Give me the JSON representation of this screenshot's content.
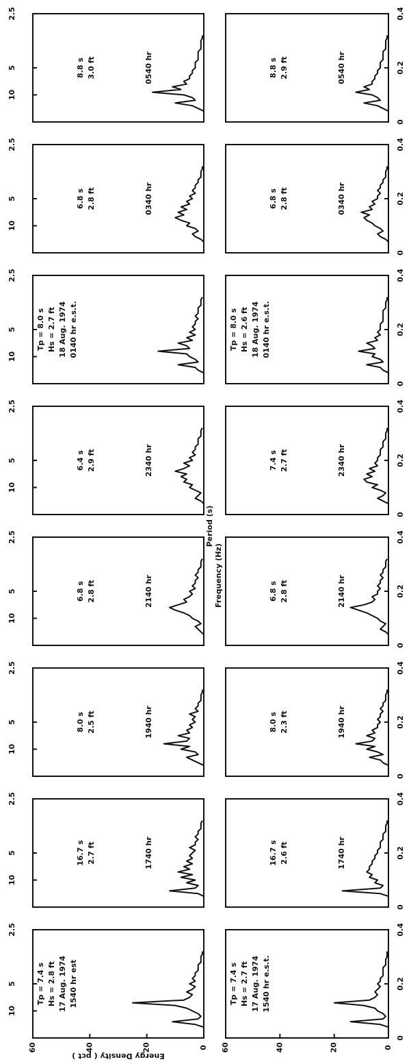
{
  "chart_data": [
    {
      "type": "line",
      "annotation": [
        "Tp = 7.4 s",
        "Hs = 2.8 ft",
        "17 Aug. 1974",
        "1540 hr est"
      ],
      "x": [
        0.04,
        0.05,
        0.06,
        0.07,
        0.08,
        0.09,
        0.1,
        0.11,
        0.12,
        0.13,
        0.14,
        0.15,
        0.16,
        0.17,
        0.18,
        0.19,
        0.2,
        0.21,
        0.22,
        0.23,
        0.24,
        0.25,
        0.26,
        0.27,
        0.28,
        0.29,
        0.3,
        0.31,
        0.32
      ],
      "values": [
        0,
        3,
        11,
        2,
        1,
        2,
        4,
        6,
        10,
        25,
        7,
        5,
        4,
        6,
        4,
        3,
        5,
        3,
        4,
        3,
        3,
        2,
        2,
        2,
        1,
        1,
        1,
        0.5,
        0.5
      ],
      "color": "#111",
      "xlim": [
        0,
        0.4
      ],
      "ylim": [
        0,
        60
      ],
      "x2ticks": [
        {
          "value": 0.1,
          "label": "10"
        },
        {
          "value": 0.2,
          "label": "5"
        },
        {
          "value": 0.4,
          "label": "2.5"
        }
      ],
      "yticks": [
        0,
        20,
        40,
        60
      ],
      "ylabel": "Energy Density ( pct )"
    },
    {
      "type": "line",
      "annotation": [
        "16.7 s",
        "2.7 ft",
        "1740 hr"
      ],
      "x": [
        0.04,
        0.05,
        0.06,
        0.07,
        0.08,
        0.09,
        0.1,
        0.11,
        0.12,
        0.13,
        0.14,
        0.15,
        0.16,
        0.17,
        0.18,
        0.19,
        0.2,
        0.21,
        0.22,
        0.23,
        0.24,
        0.25,
        0.26,
        0.27,
        0.28,
        0.29,
        0.3,
        0.31,
        0.32
      ],
      "values": [
        0,
        2,
        12,
        3,
        2,
        6,
        3,
        8,
        4,
        9,
        5,
        7,
        4,
        6,
        4,
        5,
        4,
        3,
        5,
        3,
        3,
        2,
        3,
        2,
        2,
        1,
        1,
        1,
        0.5
      ],
      "color": "#111",
      "xlim": [
        0,
        0.4
      ],
      "ylim": [
        0,
        60
      ],
      "x2ticks": [
        {
          "value": 0.1,
          "label": "10"
        },
        {
          "value": 0.2,
          "label": "5"
        },
        {
          "value": 0.4,
          "label": "2.5"
        }
      ]
    },
    {
      "type": "line",
      "annotation": [
        "8.0 s",
        "2.5 ft",
        "1940 hr"
      ],
      "x": [
        0.04,
        0.05,
        0.06,
        0.07,
        0.08,
        0.09,
        0.1,
        0.11,
        0.12,
        0.13,
        0.14,
        0.15,
        0.16,
        0.17,
        0.18,
        0.19,
        0.2,
        0.21,
        0.22,
        0.23,
        0.24,
        0.25,
        0.26,
        0.27,
        0.28,
        0.29,
        0.3,
        0.31,
        0.32
      ],
      "values": [
        0,
        2,
        4,
        6,
        2,
        3,
        8,
        5,
        14,
        6,
        5,
        9,
        5,
        6,
        4,
        5,
        3,
        4,
        3,
        5,
        2,
        3,
        2,
        2,
        1,
        1,
        1,
        0.5,
        0.5
      ],
      "color": "#111",
      "xlim": [
        0,
        0.4
      ],
      "ylim": [
        0,
        60
      ],
      "x2ticks": [
        {
          "value": 0.1,
          "label": "10"
        },
        {
          "value": 0.2,
          "label": "5"
        },
        {
          "value": 0.4,
          "label": "2.5"
        }
      ]
    },
    {
      "type": "line",
      "annotation": [
        "6.8 s",
        "2.8 ft",
        "2140 hr"
      ],
      "x": [
        0.04,
        0.05,
        0.06,
        0.07,
        0.08,
        0.09,
        0.1,
        0.11,
        0.12,
        0.13,
        0.14,
        0.15,
        0.16,
        0.17,
        0.18,
        0.19,
        0.2,
        0.21,
        0.22,
        0.23,
        0.24,
        0.25,
        0.26,
        0.27,
        0.28,
        0.29,
        0.3,
        0.31,
        0.32
      ],
      "values": [
        0,
        1,
        2,
        3,
        1,
        2,
        4,
        5,
        7,
        10,
        12,
        9,
        6,
        7,
        5,
        4,
        5,
        3,
        4,
        3,
        3,
        2,
        3,
        2,
        2,
        1,
        1,
        1,
        0.5
      ],
      "color": "#111",
      "xlim": [
        0,
        0.4
      ],
      "ylim": [
        0,
        60
      ],
      "x2ticks": [
        {
          "value": 0.1,
          "label": "10"
        },
        {
          "value": 0.2,
          "label": "5"
        },
        {
          "value": 0.4,
          "label": "2.5"
        }
      ],
      "x2label": "Period (s)"
    },
    {
      "type": "line",
      "annotation": [
        "6.4 s",
        "2.9 ft",
        "2340 hr"
      ],
      "x": [
        0.04,
        0.05,
        0.06,
        0.07,
        0.08,
        0.09,
        0.1,
        0.11,
        0.12,
        0.13,
        0.14,
        0.15,
        0.16,
        0.17,
        0.18,
        0.19,
        0.2,
        0.21,
        0.22,
        0.23,
        0.24,
        0.25,
        0.26,
        0.27,
        0.28,
        0.29,
        0.3,
        0.31,
        0.32
      ],
      "values": [
        0,
        1,
        3,
        2,
        1,
        3,
        5,
        4,
        7,
        6,
        8,
        6,
        10,
        7,
        5,
        7,
        4,
        5,
        3,
        4,
        3,
        3,
        2,
        2,
        2,
        1,
        1,
        1,
        0.5
      ],
      "color": "#111",
      "xlim": [
        0,
        0.4
      ],
      "ylim": [
        0,
        60
      ],
      "x2ticks": [
        {
          "value": 0.1,
          "label": "10"
        },
        {
          "value": 0.2,
          "label": "5"
        },
        {
          "value": 0.4,
          "label": "2.5"
        }
      ]
    },
    {
      "type": "line",
      "annotation": [
        "Tp = 8.0 s",
        "Hs = 2.7 ft",
        "18 Aug. 1974",
        "0140 hr e.s.t."
      ],
      "x": [
        0.04,
        0.05,
        0.06,
        0.07,
        0.08,
        0.09,
        0.1,
        0.11,
        0.12,
        0.13,
        0.14,
        0.15,
        0.16,
        0.17,
        0.18,
        0.19,
        0.2,
        0.21,
        0.22,
        0.23,
        0.24,
        0.25,
        0.26,
        0.27,
        0.28,
        0.29,
        0.3,
        0.31,
        0.32
      ],
      "values": [
        0,
        2,
        3,
        9,
        2,
        3,
        5,
        6,
        16,
        5,
        6,
        9,
        4,
        6,
        3,
        5,
        3,
        4,
        3,
        3,
        2,
        3,
        2,
        2,
        2,
        1,
        1,
        1,
        0.5
      ],
      "color": "#111",
      "xlim": [
        0,
        0.4
      ],
      "ylim": [
        0,
        60
      ],
      "x2ticks": [
        {
          "value": 0.1,
          "label": "10"
        },
        {
          "value": 0.2,
          "label": "5"
        },
        {
          "value": 0.4,
          "label": "2.5"
        }
      ]
    },
    {
      "type": "line",
      "annotation": [
        "6.8 s",
        "2.8 ft",
        "0340 hr"
      ],
      "x": [
        0.04,
        0.05,
        0.06,
        0.07,
        0.08,
        0.09,
        0.1,
        0.11,
        0.12,
        0.13,
        0.14,
        0.15,
        0.16,
        0.17,
        0.18,
        0.19,
        0.2,
        0.21,
        0.22,
        0.23,
        0.24,
        0.25,
        0.26,
        0.27,
        0.28,
        0.29,
        0.3,
        0.31,
        0.32
      ],
      "values": [
        0,
        1,
        3,
        4,
        2,
        3,
        6,
        5,
        8,
        10,
        7,
        9,
        6,
        8,
        5,
        6,
        4,
        5,
        3,
        4,
        3,
        3,
        2,
        2,
        1,
        1,
        1,
        0.5,
        0.5
      ],
      "color": "#111",
      "xlim": [
        0,
        0.4
      ],
      "ylim": [
        0,
        60
      ],
      "x2ticks": [
        {
          "value": 0.1,
          "label": "10"
        },
        {
          "value": 0.2,
          "label": "5"
        },
        {
          "value": 0.4,
          "label": "2.5"
        }
      ]
    },
    {
      "type": "line",
      "annotation": [
        "8.8 s",
        "3.0 ft",
        "0540 hr"
      ],
      "x": [
        0.04,
        0.05,
        0.06,
        0.07,
        0.08,
        0.09,
        0.1,
        0.11,
        0.12,
        0.13,
        0.14,
        0.15,
        0.16,
        0.17,
        0.18,
        0.19,
        0.2,
        0.21,
        0.22,
        0.23,
        0.24,
        0.25,
        0.26,
        0.27,
        0.28,
        0.29,
        0.3,
        0.31,
        0.32
      ],
      "values": [
        0,
        2,
        4,
        10,
        3,
        4,
        7,
        18,
        8,
        11,
        6,
        7,
        5,
        5,
        4,
        4,
        3,
        3,
        3,
        2,
        2,
        2,
        2,
        1,
        1,
        1,
        1,
        0.5,
        0.5
      ],
      "color": "#111",
      "xlim": [
        0,
        0.4
      ],
      "ylim": [
        0,
        60
      ],
      "x2ticks": [
        {
          "value": 0.1,
          "label": "10"
        },
        {
          "value": 0.2,
          "label": "5"
        },
        {
          "value": 0.4,
          "label": "2.5"
        }
      ]
    },
    {
      "type": "line",
      "annotation": [
        "Tp = 7.4 s",
        "Hs = 2.7 ft",
        "17 Aug. 1974",
        "1540 hr e.s.t."
      ],
      "x": [
        0.04,
        0.05,
        0.06,
        0.07,
        0.08,
        0.09,
        0.1,
        0.11,
        0.12,
        0.13,
        0.14,
        0.15,
        0.16,
        0.17,
        0.18,
        0.19,
        0.2,
        0.21,
        0.22,
        0.23,
        0.24,
        0.25,
        0.26,
        0.27,
        0.28,
        0.29,
        0.3,
        0.31,
        0.32
      ],
      "values": [
        0,
        3,
        14,
        2,
        1,
        2,
        4,
        5,
        9,
        20,
        7,
        5,
        4,
        5,
        4,
        3,
        4,
        3,
        3,
        2,
        2,
        2,
        2,
        1,
        1,
        1,
        0.5,
        0.5,
        0.5
      ],
      "color": "#111",
      "xlim": [
        0,
        0.4
      ],
      "ylim": [
        0,
        60
      ],
      "xticks": [
        0,
        0.2,
        0.4
      ],
      "yticks": [
        0,
        20,
        40,
        60
      ]
    },
    {
      "type": "line",
      "annotation": [
        "16.7 s",
        "2.6 ft",
        "1740 hr"
      ],
      "x": [
        0.04,
        0.05,
        0.06,
        0.07,
        0.08,
        0.09,
        0.1,
        0.11,
        0.12,
        0.13,
        0.14,
        0.15,
        0.16,
        0.17,
        0.18,
        0.19,
        0.2,
        0.21,
        0.22,
        0.23,
        0.24,
        0.25,
        0.26,
        0.27,
        0.28,
        0.29,
        0.3,
        0.31,
        0.32
      ],
      "values": [
        0,
        3,
        17,
        3,
        2,
        5,
        4,
        7,
        6,
        8,
        7,
        7,
        6,
        6,
        5,
        5,
        4,
        4,
        3,
        3,
        3,
        2,
        2,
        2,
        1,
        1,
        1,
        0.5,
        0.5
      ],
      "color": "#111",
      "xlim": [
        0,
        0.4
      ],
      "ylim": [
        0,
        60
      ],
      "xticks": [
        0,
        0.2,
        0.4
      ]
    },
    {
      "type": "line",
      "annotation": [
        "8.0 s",
        "2.3 ft",
        "1940 hr"
      ],
      "x": [
        0.04,
        0.05,
        0.06,
        0.07,
        0.08,
        0.09,
        0.1,
        0.11,
        0.12,
        0.13,
        0.14,
        0.15,
        0.16,
        0.17,
        0.18,
        0.19,
        0.2,
        0.21,
        0.22,
        0.23,
        0.24,
        0.25,
        0.26,
        0.27,
        0.28,
        0.29,
        0.3,
        0.31,
        0.32
      ],
      "values": [
        0,
        2,
        3,
        7,
        2,
        4,
        8,
        5,
        12,
        6,
        5,
        8,
        5,
        6,
        4,
        4,
        3,
        4,
        3,
        3,
        2,
        3,
        2,
        2,
        1,
        1,
        1,
        0.5,
        0.5
      ],
      "color": "#111",
      "xlim": [
        0,
        0.4
      ],
      "ylim": [
        0,
        60
      ],
      "xticks": [
        0,
        0.2,
        0.4
      ]
    },
    {
      "type": "line",
      "annotation": [
        "6.8 s",
        "2.8 ft",
        "2140 hr"
      ],
      "x": [
        0.04,
        0.05,
        0.06,
        0.07,
        0.08,
        0.09,
        0.1,
        0.11,
        0.12,
        0.13,
        0.14,
        0.15,
        0.16,
        0.17,
        0.18,
        0.19,
        0.2,
        0.21,
        0.22,
        0.23,
        0.24,
        0.25,
        0.26,
        0.27,
        0.28,
        0.29,
        0.3,
        0.31,
        0.32
      ],
      "values": [
        0,
        1,
        3,
        2,
        1,
        3,
        4,
        6,
        8,
        11,
        14,
        9,
        6,
        5,
        6,
        4,
        4,
        3,
        4,
        3,
        3,
        2,
        3,
        2,
        2,
        1,
        1,
        1,
        0.5
      ],
      "color": "#111",
      "xlim": [
        0,
        0.4
      ],
      "ylim": [
        0,
        60
      ],
      "xticks": [
        0,
        0.2,
        0.4
      ],
      "xlabel": "Frequency (Hz)"
    },
    {
      "type": "line",
      "annotation": [
        "7.4 s",
        "2.7 ft",
        "2340 hr"
      ],
      "x": [
        0.04,
        0.05,
        0.06,
        0.07,
        0.08,
        0.09,
        0.1,
        0.11,
        0.12,
        0.13,
        0.14,
        0.15,
        0.16,
        0.17,
        0.18,
        0.19,
        0.2,
        0.21,
        0.22,
        0.23,
        0.24,
        0.25,
        0.26,
        0.27,
        0.28,
        0.29,
        0.3,
        0.31,
        0.32
      ],
      "values": [
        0,
        2,
        4,
        2,
        1,
        3,
        6,
        4,
        8,
        9,
        6,
        8,
        5,
        7,
        4,
        5,
        4,
        4,
        3,
        3,
        3,
        2,
        2,
        2,
        1,
        1,
        1,
        0.5,
        0.5
      ],
      "color": "#111",
      "xlim": [
        0,
        0.4
      ],
      "ylim": [
        0,
        60
      ],
      "xticks": [
        0,
        0.2,
        0.4
      ]
    },
    {
      "type": "line",
      "annotation": [
        "Tp = 8.0 s",
        "Hs = 2.6 ft",
        "18 Aug. 1974",
        "0140 hr e.s.t."
      ],
      "x": [
        0.04,
        0.05,
        0.06,
        0.07,
        0.08,
        0.09,
        0.1,
        0.11,
        0.12,
        0.13,
        0.14,
        0.15,
        0.16,
        0.17,
        0.18,
        0.19,
        0.2,
        0.21,
        0.22,
        0.23,
        0.24,
        0.25,
        0.26,
        0.27,
        0.28,
        0.29,
        0.3,
        0.31,
        0.32
      ],
      "values": [
        0,
        2,
        3,
        8,
        2,
        3,
        6,
        5,
        11,
        5,
        6,
        8,
        4,
        5,
        3,
        4,
        3,
        3,
        3,
        2,
        2,
        2,
        2,
        2,
        1,
        1,
        1,
        0.5,
        0.5
      ],
      "color": "#111",
      "xlim": [
        0,
        0.4
      ],
      "ylim": [
        0,
        60
      ],
      "xticks": [
        0,
        0.2,
        0.4
      ]
    },
    {
      "type": "line",
      "annotation": [
        "6.8 s",
        "2.8 ft",
        "0340 hr"
      ],
      "x": [
        0.04,
        0.05,
        0.06,
        0.07,
        0.08,
        0.09,
        0.1,
        0.11,
        0.12,
        0.13,
        0.14,
        0.15,
        0.16,
        0.17,
        0.18,
        0.19,
        0.2,
        0.21,
        0.22,
        0.23,
        0.24,
        0.25,
        0.26,
        0.27,
        0.28,
        0.29,
        0.3,
        0.31,
        0.32
      ],
      "values": [
        0,
        1,
        3,
        4,
        2,
        3,
        5,
        6,
        8,
        9,
        7,
        10,
        6,
        7,
        5,
        6,
        4,
        4,
        3,
        4,
        3,
        3,
        2,
        2,
        1,
        1,
        1,
        0.5,
        0.5
      ],
      "color": "#111",
      "xlim": [
        0,
        0.4
      ],
      "ylim": [
        0,
        60
      ],
      "xticks": [
        0,
        0.2,
        0.4
      ]
    },
    {
      "type": "line",
      "annotation": [
        "8.8 s",
        "2.9 ft",
        "0540 hr"
      ],
      "x": [
        0.04,
        0.05,
        0.06,
        0.07,
        0.08,
        0.09,
        0.1,
        0.11,
        0.12,
        0.13,
        0.14,
        0.15,
        0.16,
        0.17,
        0.18,
        0.19,
        0.2,
        0.21,
        0.22,
        0.23,
        0.24,
        0.25,
        0.26,
        0.27,
        0.28,
        0.29,
        0.3,
        0.31,
        0.32
      ],
      "values": [
        0,
        2,
        4,
        9,
        3,
        4,
        6,
        12,
        7,
        9,
        6,
        6,
        5,
        5,
        4,
        4,
        3,
        3,
        3,
        2,
        2,
        2,
        2,
        1,
        1,
        1,
        1,
        0.5,
        0.5
      ],
      "color": "#111",
      "xlim": [
        0,
        0.4
      ],
      "ylim": [
        0,
        60
      ],
      "xticks": [
        0,
        0.2,
        0.4
      ]
    }
  ]
}
